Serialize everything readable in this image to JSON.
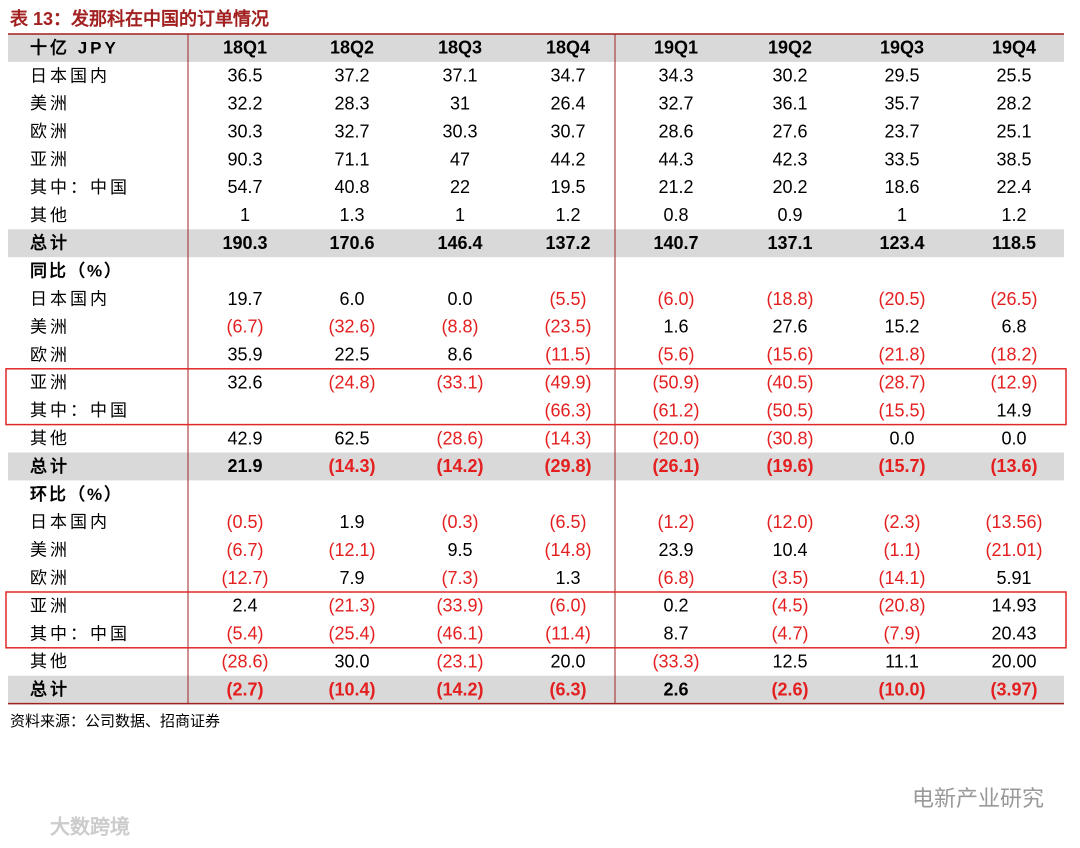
{
  "header": {
    "title": "表 13：发那科在中国的订单情况"
  },
  "table": {
    "columns": [
      "十亿 JPY",
      "18Q1",
      "18Q2",
      "18Q3",
      "18Q4",
      "19Q1",
      "19Q2",
      "19Q3",
      "19Q4"
    ],
    "sections": [
      {
        "rows": [
          [
            "日本国内",
            "36.5",
            "37.2",
            "37.1",
            "34.7",
            "34.3",
            "30.2",
            "29.5",
            "25.5"
          ],
          [
            "美洲",
            "32.2",
            "28.3",
            "31",
            "26.4",
            "32.7",
            "36.1",
            "35.7",
            "28.2"
          ],
          [
            "欧洲",
            "30.3",
            "32.7",
            "30.3",
            "30.7",
            "28.6",
            "27.6",
            "23.7",
            "25.1"
          ],
          [
            "亚洲",
            "90.3",
            "71.1",
            "47",
            "44.2",
            "44.3",
            "42.3",
            "33.5",
            "38.5"
          ],
          [
            "其中：中国",
            "54.7",
            "40.8",
            "22",
            "19.5",
            "21.2",
            "20.2",
            "18.6",
            "22.4"
          ],
          [
            "其他",
            "1",
            "1.3",
            "1",
            "1.2",
            "0.8",
            "0.9",
            "1",
            "1.2"
          ]
        ],
        "total": [
          "总计",
          "190.3",
          "170.6",
          "146.4",
          "137.2",
          "140.7",
          "137.1",
          "123.4",
          "118.5"
        ]
      },
      {
        "title": "同比（%）",
        "highlight_rows": [
          3,
          4
        ],
        "rows": [
          [
            "日本国内",
            "19.7",
            "6.0",
            "0.0",
            "(5.5)",
            "(6.0)",
            "(18.8)",
            "(20.5)",
            "(26.5)"
          ],
          [
            "美洲",
            "(6.7)",
            "(32.6)",
            "(8.8)",
            "(23.5)",
            "1.6",
            "27.6",
            "15.2",
            "6.8"
          ],
          [
            "欧洲",
            "35.9",
            "22.5",
            "8.6",
            "(11.5)",
            "(5.6)",
            "(15.6)",
            "(21.8)",
            "(18.2)"
          ],
          [
            "亚洲",
            "32.6",
            "(24.8)",
            "(33.1)",
            "(49.9)",
            "(50.9)",
            "(40.5)",
            "(28.7)",
            "(12.9)"
          ],
          [
            "其中：中国",
            null,
            null,
            null,
            "(66.3)",
            "(61.2)",
            "(50.5)",
            "(15.5)",
            "14.9"
          ],
          [
            "其他",
            "42.9",
            "62.5",
            "(28.6)",
            "(14.3)",
            "(20.0)",
            "(30.8)",
            "0.0",
            "0.0"
          ]
        ],
        "total": [
          "总计",
          "21.9",
          "(14.3)",
          "(14.2)",
          "(29.8)",
          "(26.1)",
          "(19.6)",
          "(15.7)",
          "(13.6)"
        ]
      },
      {
        "title": "环比（%）",
        "highlight_rows": [
          3,
          4
        ],
        "rows": [
          [
            "日本国内",
            "(0.5)",
            "1.9",
            "(0.3)",
            "(6.5)",
            "(1.2)",
            "(12.0)",
            "(2.3)",
            "(13.56)"
          ],
          [
            "美洲",
            "(6.7)",
            "(12.1)",
            "9.5",
            "(14.8)",
            "23.9",
            "10.4",
            "(1.1)",
            "(21.01)"
          ],
          [
            "欧洲",
            "(12.7)",
            "7.9",
            "(7.3)",
            "1.3",
            "(6.8)",
            "(3.5)",
            "(14.1)",
            "5.91"
          ],
          [
            "亚洲",
            "2.4",
            "(21.3)",
            "(33.9)",
            "(6.0)",
            "0.2",
            "(4.5)",
            "(20.8)",
            "14.93"
          ],
          [
            "其中：中国",
            "(5.4)",
            "(25.4)",
            "(46.1)",
            "(11.4)",
            "8.7",
            "(4.7)",
            "(7.9)",
            "20.43"
          ],
          [
            "其他",
            "(28.6)",
            "30.0",
            "(23.1)",
            "20.0",
            "(33.3)",
            "12.5",
            "11.1",
            "20.00"
          ]
        ],
        "total": [
          "总计",
          "(2.7)",
          "(10.4)",
          "(14.2)",
          "(6.3)",
          "2.6",
          "(2.6)",
          "(10.0)",
          "(3.97)"
        ]
      }
    ]
  },
  "footer": {
    "source": "资料来源：公司数据、招商证券",
    "watermark_right": "电新产业研究",
    "watermark_left": "大数跨境"
  }
}
